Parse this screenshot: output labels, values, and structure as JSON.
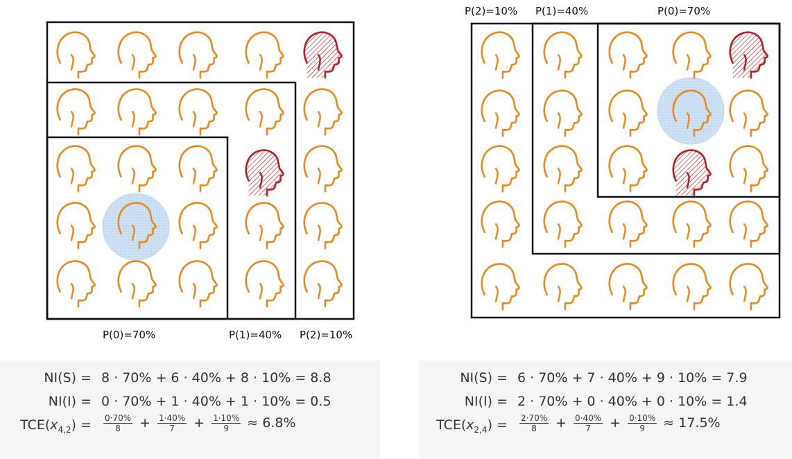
{
  "left": {
    "labels": {
      "p0": "P(0)=70%",
      "p1": "P(1)=40%",
      "p2": "P(2)=10%"
    },
    "formulas": {
      "nis_label": "NI(S) =",
      "nis_expr": "8 · 70% + 6 · 40% + 8 · 10% = 8.8",
      "nii_label": "NI(I) =",
      "nii_expr": "0 · 70% + 1 · 40% + 1 · 10% = 0.5",
      "tce_prefix": "TCE(",
      "tce_var": "x",
      "tce_sub": "4,2",
      "tce_suffix": ") =",
      "frac1_num": "0·70%",
      "frac1_den": "8",
      "frac2_num": "1·40%",
      "frac2_den": "7",
      "frac3_num": "1·10%",
      "frac3_den": "9",
      "plus": "+",
      "tce_result": "≈ 6.8%"
    }
  },
  "right": {
    "labels": {
      "p2": "P(2)=10%",
      "p1": "P(1)=40%",
      "p0": "P(0)=70%"
    },
    "formulas": {
      "nis_label": "NI(S) =",
      "nis_expr": "6 · 70% + 7 · 40% + 9 · 10% = 7.9",
      "nii_label": "NI(I) =",
      "nii_expr": "2 · 70% + 0 · 40% + 0 · 10% = 1.4",
      "tce_prefix": "TCE(",
      "tce_var": "x",
      "tce_sub": "2,4",
      "tce_suffix": ") =",
      "frac1_num": "2·70%",
      "frac1_den": "8",
      "frac2_num": "0·40%",
      "frac2_den": "7",
      "frac3_num": "0·10%",
      "frac3_den": "9",
      "plus": "+",
      "tce_result": "≈ 17.5%"
    }
  },
  "colors": {
    "susceptible": "#e8891e",
    "infected": "#b3202a",
    "target_halo": "#bcd7ef",
    "box": "#111111"
  }
}
